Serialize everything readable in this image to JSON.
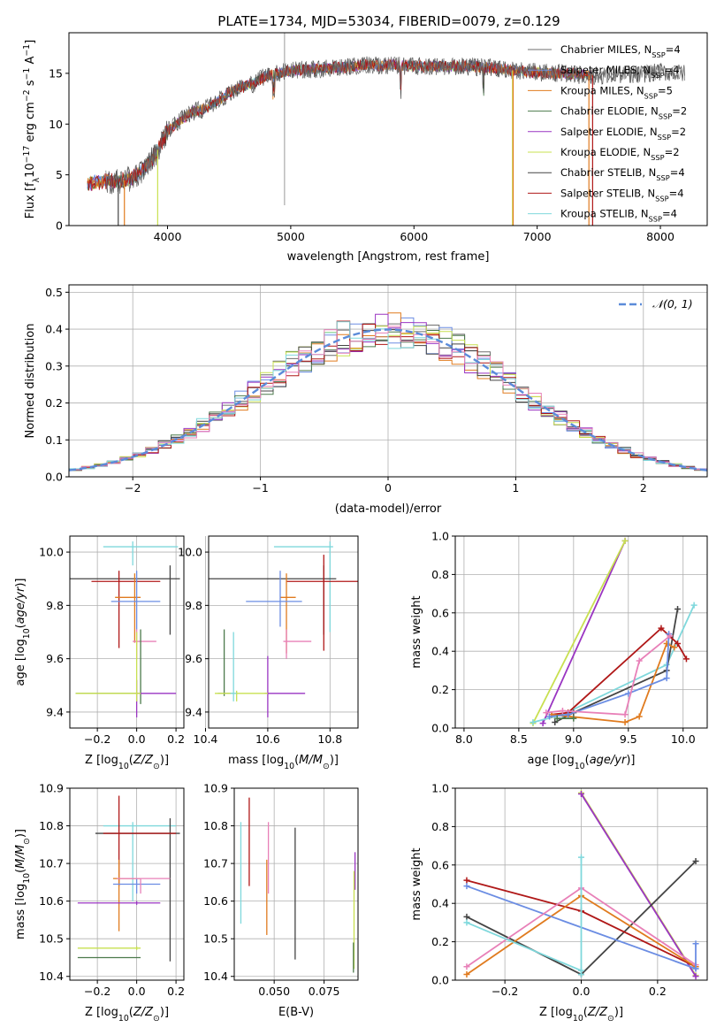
{
  "figure_title": "PLATE=1734, MJD=53034, FIBERID=0079, z=0.129",
  "colors": {
    "Chabrier MILES": "#6e6e6e",
    "Salpeter MILES": "#6b8de3",
    "Kroupa MILES": "#e07b1f",
    "Chabrier ELODIE": "#4c7a4c",
    "Salpeter ELODIE": "#9a35c2",
    "Kroupa ELODIE": "#c8e050",
    "Chabrier STELIB": "#444444",
    "Salpeter STELIB": "#b01818",
    "Kroupa STELIB": "#7fd8dc",
    "extra_pink": "#e880b8",
    "gaussian": "#5b8bd9"
  },
  "chart_data": [
    {
      "id": "spectrum",
      "type": "line",
      "xlabel": "wavelength [Angstrom, rest frame]",
      "ylabel": "Flux [f_λ 10^-17 erg cm^-2 s^-1 A^-1]",
      "xlim": [
        3200,
        8380
      ],
      "ylim": [
        0,
        19
      ],
      "xticks": [
        4000,
        5000,
        6000,
        7000,
        8000
      ],
      "yticks": [
        0,
        5,
        10,
        15
      ],
      "grid": false,
      "legend": "right",
      "series": [
        {
          "name": "Chabrier MILES, N_SSP=4",
          "label_main": "Chabrier MILES, N",
          "label_sub": "SSP",
          "label_tail": "=4",
          "color": "#6e6e6e"
        },
        {
          "name": "Salpeter MILES, N_SSP=4",
          "label_main": "Salpeter MILES, N",
          "label_sub": "SSP",
          "label_tail": "=4",
          "color": "#6b8de3"
        },
        {
          "name": "Kroupa MILES, N_SSP=5",
          "label_main": "Kroupa MILES, N",
          "label_sub": "SSP",
          "label_tail": "=5",
          "color": "#e07b1f"
        },
        {
          "name": "Chabrier ELODIE, N_SSP=2",
          "label_main": "Chabrier ELODIE, N",
          "label_sub": "SSP",
          "label_tail": "=2",
          "color": "#4c7a4c"
        },
        {
          "name": "Salpeter ELODIE, N_SSP=2",
          "label_main": "Salpeter ELODIE, N",
          "label_sub": "SSP",
          "label_tail": "=2",
          "color": "#9a35c2"
        },
        {
          "name": "Kroupa ELODIE, N_SSP=2",
          "label_main": "Kroupa ELODIE, N",
          "label_sub": "SSP",
          "label_tail": "=2",
          "color": "#c8e050"
        },
        {
          "name": "Chabrier STELIB, N_SSP=4",
          "label_main": "Chabrier STELIB, N",
          "label_sub": "SSP",
          "label_tail": "=4",
          "color": "#444444"
        },
        {
          "name": "Salpeter STELIB, N_SSP=4",
          "label_main": "Salpeter STELIB, N",
          "label_sub": "SSP",
          "label_tail": "=4",
          "color": "#b01818"
        },
        {
          "name": "Kroupa STELIB, N_SSP=4",
          "label_main": "Kroupa STELIB, N",
          "label_sub": "SSP",
          "label_tail": "=4",
          "color": "#7fd8dc"
        }
      ],
      "continuum": {
        "x": [
          3350,
          3400,
          3500,
          3600,
          3700,
          3800,
          3900,
          4000,
          4100,
          4200,
          4300,
          4400,
          4500,
          4600,
          4700,
          4800,
          4900,
          5000,
          5200,
          5400,
          5600,
          5800,
          6000,
          6200,
          6400,
          6600,
          6800,
          7000,
          7200,
          7400,
          7600,
          7800,
          8000,
          8200
        ],
        "y": [
          4.0,
          4.3,
          4.4,
          4.3,
          4.6,
          5.5,
          7.0,
          9.3,
          10.3,
          11.2,
          11.5,
          12.2,
          13.1,
          13.6,
          14.0,
          14.8,
          15.0,
          15.3,
          15.4,
          15.6,
          15.8,
          15.8,
          15.7,
          15.7,
          15.7,
          15.6,
          15.3,
          15.1,
          15.0,
          14.8,
          14.8,
          14.9,
          15.1,
          15.0
        ]
      }
    },
    {
      "id": "residuals",
      "type": "bar",
      "xlabel": "(data-model)/error",
      "ylabel": "Normed distribution",
      "xlim": [
        -2.5,
        2.5
      ],
      "ylim": [
        0,
        0.52
      ],
      "xticks": [
        -2,
        -1,
        0,
        1,
        2
      ],
      "yticks": [
        0.0,
        0.1,
        0.2,
        0.3,
        0.4,
        0.5
      ],
      "grid": true,
      "legend": "top-right",
      "legend_label": "𝒩(0, 1)",
      "bin_width": 0.1
    },
    {
      "id": "age_vs_Z",
      "type": "scatter",
      "xlabel": "Z [log10(Z/Z⊙)]",
      "ylabel": "age [log10(age/yr)]",
      "xlim": [
        -0.34,
        0.24
      ],
      "ylim": [
        9.34,
        10.06
      ],
      "xticks": [
        -0.2,
        0.0,
        0.2
      ],
      "yticks": [
        9.4,
        9.6,
        9.8,
        10.0
      ],
      "grid": true,
      "points": [
        {
          "color": "#7fd8dc",
          "x": -0.02,
          "xl": -0.17,
          "xr": 0.21,
          "y": 10.02,
          "yl": 9.95,
          "yh": 10.04
        },
        {
          "color": "#444444",
          "x": 0.17,
          "xl": -0.35,
          "xr": 0.22,
          "y": 9.9,
          "yl": 9.69,
          "yh": 9.95
        },
        {
          "color": "#b01818",
          "x": -0.09,
          "xl": -0.23,
          "xr": 0.12,
          "y": 9.89,
          "yl": 9.64,
          "yh": 9.93
        },
        {
          "color": "#e07b1f",
          "x": -0.01,
          "xl": -0.11,
          "xr": 0.02,
          "y": 9.83,
          "yl": 9.66,
          "yh": 9.92
        },
        {
          "color": "#6b8de3",
          "x": 0.0,
          "xl": -0.13,
          "xr": 0.12,
          "y": 9.815,
          "yl": 9.71,
          "yh": 9.93
        },
        {
          "color": "#e880b8",
          "x": 0.0,
          "xl": -0.02,
          "xr": 0.1,
          "y": 9.665,
          "yl": 9.6,
          "yh": 9.71
        },
        {
          "color": "#4c7a4c",
          "x": 0.02,
          "xl": -0.31,
          "xr": 0.02,
          "y": 9.47,
          "yl": 9.43,
          "yh": 9.71
        },
        {
          "color": "#9a35c2",
          "x": 0.0,
          "xl": -0.01,
          "xr": 0.2,
          "y": 9.47,
          "yl": 9.38,
          "yh": 9.52
        },
        {
          "color": "#c8e050",
          "x": 0.0,
          "xl": -0.31,
          "xr": 0.02,
          "y": 9.47,
          "yl": 9.44,
          "yh": 9.7
        }
      ]
    },
    {
      "id": "age_vs_mass",
      "type": "scatter",
      "xlabel": "mass [log10(M/M⊙)]",
      "ylabel": "",
      "xlim": [
        10.41,
        10.89
      ],
      "ylim": [
        9.34,
        10.06
      ],
      "xticks": [
        10.4,
        10.6,
        10.8
      ],
      "yticks": [
        9.4,
        9.6,
        9.8,
        10.0
      ],
      "grid": true,
      "points": [
        {
          "color": "#7fd8dc",
          "x": 10.8,
          "xl": 10.62,
          "xr": 10.81,
          "y": 10.02,
          "yl": 9.7,
          "yh": 10.04
        },
        {
          "color": "#444444",
          "x": 10.78,
          "xl": 10.41,
          "xr": 10.82,
          "y": 9.9,
          "yl": 9.69,
          "yh": 9.95
        },
        {
          "color": "#b01818",
          "x": 10.78,
          "xl": 10.66,
          "xr": 10.89,
          "y": 9.89,
          "yl": 9.63,
          "yh": 9.99
        },
        {
          "color": "#e07b1f",
          "x": 10.66,
          "xl": 10.64,
          "xr": 10.69,
          "y": 9.83,
          "yl": 9.62,
          "yh": 9.92
        },
        {
          "color": "#6b8de3",
          "x": 10.64,
          "xl": 10.53,
          "xr": 10.71,
          "y": 9.815,
          "yl": 9.72,
          "yh": 9.93
        },
        {
          "color": "#e880b8",
          "x": 10.66,
          "xl": 10.65,
          "xr": 10.74,
          "y": 9.665,
          "yl": 9.6,
          "yh": 9.71
        },
        {
          "color": "#4c7a4c",
          "x": 10.46,
          "xl": 10.44,
          "xr": 10.49,
          "y": 9.47,
          "yl": 9.46,
          "yh": 9.71
        },
        {
          "color": "#9a35c2",
          "x": 10.6,
          "xl": 10.59,
          "xr": 10.72,
          "y": 9.47,
          "yl": 9.38,
          "yh": 9.61
        },
        {
          "color": "#c8e050",
          "x": 10.5,
          "xl": 10.43,
          "xr": 10.6,
          "y": 9.47,
          "yl": 9.44,
          "yh": 9.48
        },
        {
          "color": "#7fd8dc",
          "x": 10.49,
          "xl": 10.48,
          "xr": 10.5,
          "y": 9.47,
          "yl": 9.44,
          "yh": 9.7
        }
      ]
    },
    {
      "id": "weight_vs_age",
      "type": "line",
      "xlabel": "age [log10(age/yr)]",
      "ylabel": "mass weight",
      "xlim": [
        7.92,
        10.22
      ],
      "ylim": [
        0,
        1.0
      ],
      "xticks": [
        8.0,
        8.5,
        9.0,
        9.5,
        10.0
      ],
      "yticks": [
        0.0,
        0.2,
        0.4,
        0.6,
        0.8,
        1.0
      ],
      "grid": true,
      "series": [
        {
          "color": "#9a35c2",
          "x": [
            8.72,
            9.47
          ],
          "y": [
            0.025,
            0.975
          ]
        },
        {
          "color": "#c8e050",
          "x": [
            8.63,
            9.47
          ],
          "y": [
            0.025,
            0.975
          ]
        },
        {
          "color": "#7fd8dc",
          "x": [
            8.63,
            8.9,
            9.85,
            10.1
          ],
          "y": [
            0.03,
            0.07,
            0.33,
            0.64
          ]
        },
        {
          "color": "#444444",
          "x": [
            8.83,
            9.0,
            9.85,
            9.95
          ],
          "y": [
            0.03,
            0.08,
            0.3,
            0.62
          ]
        },
        {
          "color": "#b01818",
          "x": [
            8.8,
            8.95,
            9.8,
            9.95,
            10.03
          ],
          "y": [
            0.07,
            0.08,
            0.52,
            0.44,
            0.36
          ]
        },
        {
          "color": "#e07b1f",
          "x": [
            8.8,
            9.47,
            9.6,
            9.85,
            9.92
          ],
          "y": [
            0.07,
            0.03,
            0.06,
            0.44,
            0.42
          ]
        },
        {
          "color": "#6b8de3",
          "x": [
            8.78,
            8.95,
            9.5,
            9.85,
            9.87
          ],
          "y": [
            0.06,
            0.07,
            0.18,
            0.26,
            0.49
          ]
        },
        {
          "color": "#e880b8",
          "x": [
            8.75,
            8.9,
            9.47,
            9.6,
            9.88
          ],
          "y": [
            0.08,
            0.09,
            0.07,
            0.35,
            0.48
          ]
        },
        {
          "color": "#4c7a4c",
          "x": [
            8.85,
            9.0
          ],
          "y": [
            0.05,
            0.05
          ]
        }
      ]
    },
    {
      "id": "mass_vs_Z",
      "type": "scatter",
      "xlabel": "Z [log10(Z/Z⊙)]",
      "ylabel": "mass [log10(M/M⊙)]",
      "xlim": [
        -0.34,
        0.24
      ],
      "ylim": [
        10.39,
        10.9
      ],
      "xticks": [
        -0.2,
        0.0,
        0.2
      ],
      "yticks": [
        10.4,
        10.5,
        10.6,
        10.7,
        10.8,
        10.9
      ],
      "grid": true,
      "points": [
        {
          "color": "#7fd8dc",
          "x": -0.02,
          "xl": -0.17,
          "xr": 0.2,
          "y": 10.8,
          "yl": 10.6,
          "yh": 10.81
        },
        {
          "color": "#444444",
          "x": 0.17,
          "xl": -0.21,
          "xr": 0.22,
          "y": 10.78,
          "yl": 10.44,
          "yh": 10.82
        },
        {
          "color": "#b01818",
          "x": -0.09,
          "xl": -0.17,
          "xr": 0.2,
          "y": 10.78,
          "yl": 10.64,
          "yh": 10.88
        },
        {
          "color": "#e07b1f",
          "x": -0.09,
          "xl": -0.12,
          "xr": 0.02,
          "y": 10.66,
          "yl": 10.52,
          "yh": 10.71
        },
        {
          "color": "#6b8de3",
          "x": 0.0,
          "xl": -0.12,
          "xr": 0.12,
          "y": 10.645,
          "yl": 10.62,
          "yh": 10.66
        },
        {
          "color": "#e880b8",
          "x": 0.02,
          "xl": -0.1,
          "xr": 0.17,
          "y": 10.66,
          "yl": 10.62,
          "yh": 10.66
        },
        {
          "color": "#9a35c2",
          "x": 0.0,
          "xl": -0.3,
          "xr": 0.12,
          "y": 10.595,
          "yl": 10.59,
          "yh": 10.6
        },
        {
          "color": "#c8e050",
          "x": 0.0,
          "xl": -0.3,
          "xr": 0.02,
          "y": 10.475,
          "yl": 10.47,
          "yh": 10.48
        },
        {
          "color": "#4c7a4c",
          "x": 0.0,
          "xl": -0.3,
          "xr": 0.02,
          "y": 10.45,
          "yl": 10.45,
          "yh": 10.45
        }
      ]
    },
    {
      "id": "mass_vs_EBV",
      "type": "scatter",
      "xlabel": "E(B-V)",
      "ylabel": "",
      "xlim": [
        0.03,
        0.092
      ],
      "ylim": [
        10.39,
        10.9
      ],
      "xticks": [
        0.05,
        0.075
      ],
      "xticklabels": [
        "0.050",
        "0.075"
      ],
      "yticks": [
        10.4,
        10.5,
        10.6,
        10.7,
        10.8,
        10.9
      ],
      "grid": true,
      "points": [
        {
          "color": "#7fd8dc",
          "x": 0.0333,
          "xl": 0.0333,
          "xr": 0.0333,
          "y": 10.68,
          "yl": 10.54,
          "yh": 10.81
        },
        {
          "color": "#b01818",
          "x": 0.0375,
          "xl": 0.0375,
          "xr": 0.0375,
          "y": 10.76,
          "yl": 10.64,
          "yh": 10.875
        },
        {
          "color": "#e07b1f",
          "x": 0.0463,
          "xl": 0.0463,
          "xr": 0.0463,
          "y": 10.6,
          "yl": 10.51,
          "yh": 10.71
        },
        {
          "color": "#e880b8",
          "x": 0.0471,
          "xl": 0.0471,
          "xr": 0.0471,
          "y": 10.7,
          "yl": 10.62,
          "yh": 10.81
        },
        {
          "color": "#444444",
          "x": 0.0605,
          "xl": 0.0605,
          "xr": 0.0605,
          "y": 10.62,
          "yl": 10.445,
          "yh": 10.795
        },
        {
          "color": "#9a35c2",
          "x": 0.0905,
          "xl": 0.0905,
          "xr": 0.0905,
          "y": 10.68,
          "yl": 10.63,
          "yh": 10.73
        },
        {
          "color": "#c8e050",
          "x": 0.09,
          "xl": 0.09,
          "xr": 0.09,
          "y": 10.55,
          "yl": 10.42,
          "yh": 10.68
        },
        {
          "color": "#4c7a4c",
          "x": 0.0897,
          "xl": 0.0897,
          "xr": 0.0897,
          "y": 10.45,
          "yl": 10.41,
          "yh": 10.49
        }
      ]
    },
    {
      "id": "weight_vs_Z",
      "type": "line",
      "xlabel": "Z [log10(Z/Z⊙)]",
      "ylabel": "mass weight",
      "xlim": [
        -0.33,
        0.33
      ],
      "ylim": [
        0,
        1.0
      ],
      "xticks": [
        -0.2,
        0.0,
        0.2
      ],
      "xticklabels": [
        "−0.2",
        "0.0",
        "0.2"
      ],
      "yticks": [
        0.0,
        0.2,
        0.4,
        0.6,
        0.8,
        1.0
      ],
      "grid": true,
      "series": [
        {
          "color": "#c8e050",
          "x": [
            0.0,
            0.3
          ],
          "y": [
            0.975,
            0.025
          ]
        },
        {
          "color": "#9a35c2",
          "x": [
            0.0,
            0.3
          ],
          "y": [
            0.97,
            0.02
          ]
        },
        {
          "color": "#444444",
          "x": [
            -0.3,
            0.0,
            0.3
          ],
          "y": [
            0.33,
            0.03,
            0.62
          ]
        },
        {
          "color": "#b01818",
          "x": [
            -0.3,
            0.0,
            0.3
          ],
          "y": [
            0.52,
            0.36,
            0.07
          ]
        },
        {
          "color": "#e07b1f",
          "x": [
            -0.3,
            0.0,
            0.3
          ],
          "y": [
            0.03,
            0.44,
            0.07
          ]
        },
        {
          "color": "#6b8de3",
          "x": [
            -0.3,
            0.3
          ],
          "y": [
            0.49,
            0.06
          ]
        },
        {
          "color": "#e880b8",
          "x": [
            -0.3,
            0.0,
            0.3
          ],
          "y": [
            0.07,
            0.48,
            0.08
          ]
        },
        {
          "color": "#7fd8dc",
          "x": [
            -0.3,
            0.0
          ],
          "y": [
            0.3,
            0.05
          ]
        },
        {
          "color": "#6b8de3",
          "x": [
            0.3,
            0.3
          ],
          "y": [
            0.06,
            0.19
          ]
        },
        {
          "color": "#7fd8dc",
          "x": [
            0.0,
            0.0
          ],
          "y": [
            0.03,
            0.64
          ]
        }
      ]
    }
  ]
}
